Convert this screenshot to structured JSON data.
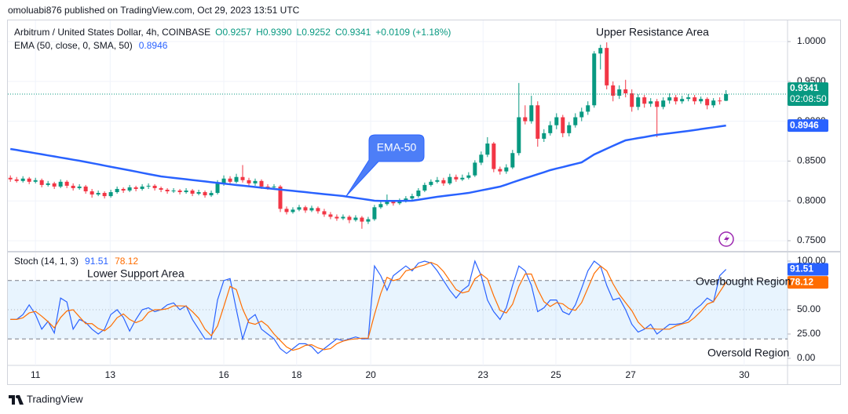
{
  "header": "omoluabi876 published on TradingView.com, Oct 29, 2023 13:51 UTC",
  "footer": "TradingView",
  "chart_data": [
    {
      "type": "candlestick",
      "title": "Arbitrum / United States Dollar, 4h, COINBASE",
      "legend_values": [
        "O0.9257",
        "H0.9390",
        "L0.9252",
        "C0.9341",
        "+0.0109 (+1.18%)"
      ],
      "price_tag": {
        "price": "0.9341",
        "countdown": "02:08:50"
      },
      "annotations": [
        "Upper Resistance Area",
        "EMA-50"
      ],
      "up_color": "#089981",
      "down_color": "#f23645",
      "xlim": [
        -0.4,
        123.8
      ],
      "xticks": [
        {
          "value": 4,
          "label": "11"
        },
        {
          "value": 15.9,
          "label": "13"
        },
        {
          "value": 34,
          "label": "16"
        },
        {
          "value": 45.6,
          "label": "18"
        },
        {
          "value": 57.4,
          "label": "20"
        },
        {
          "value": 75.3,
          "label": "23"
        },
        {
          "value": 86.9,
          "label": "25"
        },
        {
          "value": 98.8,
          "label": "27"
        },
        {
          "value": 116.9,
          "label": "30"
        }
      ],
      "ylim": [
        0.7372,
        1.0266
      ],
      "yticks": [
        {
          "value": 0.75,
          "label": "0.7500"
        },
        {
          "value": 0.8,
          "label": "0.8000"
        },
        {
          "value": 0.85,
          "label": "0.8500"
        },
        {
          "value": 0.9,
          "label": "0.9000"
        },
        {
          "value": 0.95,
          "label": "0.9500"
        },
        {
          "value": 1.0,
          "label": "1.0000"
        }
      ],
      "grid": true,
      "candles": [
        [
          0.829,
          0.832,
          0.824,
          0.827
        ],
        [
          0.827,
          0.83,
          0.823,
          0.825
        ],
        [
          0.825,
          0.831,
          0.823,
          0.828
        ],
        [
          0.828,
          0.83,
          0.821,
          0.824
        ],
        [
          0.824,
          0.829,
          0.822,
          0.826
        ],
        [
          0.826,
          0.828,
          0.817,
          0.82
        ],
        [
          0.82,
          0.825,
          0.818,
          0.822
        ],
        [
          0.822,
          0.824,
          0.815,
          0.818
        ],
        [
          0.818,
          0.827,
          0.816,
          0.824
        ],
        [
          0.824,
          0.826,
          0.816,
          0.819
        ],
        [
          0.819,
          0.822,
          0.813,
          0.816
        ],
        [
          0.816,
          0.821,
          0.814,
          0.818
        ],
        [
          0.818,
          0.82,
          0.809,
          0.812
        ],
        [
          0.812,
          0.815,
          0.804,
          0.808
        ],
        [
          0.808,
          0.813,
          0.806,
          0.81
        ],
        [
          0.81,
          0.812,
          0.803,
          0.806
        ],
        [
          0.806,
          0.814,
          0.804,
          0.811
        ],
        [
          0.811,
          0.818,
          0.809,
          0.815
        ],
        [
          0.815,
          0.817,
          0.81,
          0.813
        ],
        [
          0.813,
          0.82,
          0.811,
          0.817
        ],
        [
          0.817,
          0.819,
          0.812,
          0.815
        ],
        [
          0.815,
          0.821,
          0.813,
          0.818
        ],
        [
          0.818,
          0.822,
          0.815,
          0.819
        ],
        [
          0.819,
          0.821,
          0.813,
          0.816
        ],
        [
          0.816,
          0.818,
          0.811,
          0.814
        ],
        [
          0.814,
          0.816,
          0.809,
          0.812
        ],
        [
          0.812,
          0.816,
          0.81,
          0.813
        ],
        [
          0.813,
          0.815,
          0.808,
          0.811
        ],
        [
          0.811,
          0.816,
          0.809,
          0.813
        ],
        [
          0.813,
          0.815,
          0.806,
          0.809
        ],
        [
          0.809,
          0.814,
          0.807,
          0.811
        ],
        [
          0.811,
          0.813,
          0.804,
          0.807
        ],
        [
          0.807,
          0.813,
          0.805,
          0.81
        ],
        [
          0.81,
          0.826,
          0.808,
          0.822
        ],
        [
          0.822,
          0.832,
          0.819,
          0.828
        ],
        [
          0.828,
          0.831,
          0.82,
          0.824
        ],
        [
          0.824,
          0.834,
          0.822,
          0.83
        ],
        [
          0.83,
          0.845,
          0.823,
          0.826
        ],
        [
          0.826,
          0.829,
          0.818,
          0.822
        ],
        [
          0.822,
          0.828,
          0.819,
          0.825
        ],
        [
          0.825,
          0.827,
          0.815,
          0.818
        ],
        [
          0.818,
          0.821,
          0.814,
          0.817
        ],
        [
          0.817,
          0.821,
          0.814,
          0.818
        ],
        [
          0.818,
          0.82,
          0.786,
          0.79
        ],
        [
          0.79,
          0.793,
          0.783,
          0.786
        ],
        [
          0.786,
          0.792,
          0.784,
          0.789
        ],
        [
          0.789,
          0.795,
          0.787,
          0.792
        ],
        [
          0.792,
          0.794,
          0.785,
          0.788
        ],
        [
          0.788,
          0.794,
          0.786,
          0.791
        ],
        [
          0.791,
          0.793,
          0.784,
          0.787
        ],
        [
          0.787,
          0.79,
          0.78,
          0.783
        ],
        [
          0.783,
          0.786,
          0.777,
          0.78
        ],
        [
          0.78,
          0.783,
          0.775,
          0.778
        ],
        [
          0.778,
          0.783,
          0.776,
          0.78
        ],
        [
          0.78,
          0.782,
          0.772,
          0.776
        ],
        [
          0.776,
          0.782,
          0.774,
          0.779
        ],
        [
          0.779,
          0.781,
          0.765,
          0.774
        ],
        [
          0.774,
          0.78,
          0.771,
          0.777
        ],
        [
          0.777,
          0.795,
          0.775,
          0.792
        ],
        [
          0.792,
          0.799,
          0.79,
          0.796
        ],
        [
          0.796,
          0.808,
          0.794,
          0.799
        ],
        [
          0.799,
          0.801,
          0.794,
          0.797
        ],
        [
          0.797,
          0.803,
          0.795,
          0.8
        ],
        [
          0.8,
          0.806,
          0.798,
          0.803
        ],
        [
          0.803,
          0.809,
          0.801,
          0.806
        ],
        [
          0.806,
          0.816,
          0.804,
          0.813
        ],
        [
          0.813,
          0.823,
          0.811,
          0.82
        ],
        [
          0.82,
          0.827,
          0.818,
          0.824
        ],
        [
          0.824,
          0.83,
          0.822,
          0.826
        ],
        [
          0.826,
          0.829,
          0.819,
          0.822
        ],
        [
          0.822,
          0.834,
          0.82,
          0.83
        ],
        [
          0.83,
          0.833,
          0.824,
          0.827
        ],
        [
          0.827,
          0.833,
          0.825,
          0.829
        ],
        [
          0.829,
          0.836,
          0.827,
          0.832
        ],
        [
          0.832,
          0.851,
          0.83,
          0.848
        ],
        [
          0.848,
          0.862,
          0.845,
          0.858
        ],
        [
          0.858,
          0.88,
          0.855,
          0.872
        ],
        [
          0.872,
          0.874,
          0.836,
          0.84
        ],
        [
          0.84,
          0.843,
          0.833,
          0.837
        ],
        [
          0.837,
          0.846,
          0.834,
          0.842
        ],
        [
          0.842,
          0.864,
          0.84,
          0.86
        ],
        [
          0.86,
          0.948,
          0.857,
          0.905
        ],
        [
          0.905,
          0.92,
          0.896,
          0.9
        ],
        [
          0.9,
          0.932,
          0.897,
          0.92
        ],
        [
          0.92,
          0.925,
          0.868,
          0.878
        ],
        [
          0.878,
          0.89,
          0.874,
          0.885
        ],
        [
          0.885,
          0.9,
          0.882,
          0.895
        ],
        [
          0.895,
          0.91,
          0.89,
          0.905
        ],
        [
          0.905,
          0.908,
          0.88,
          0.885
        ],
        [
          0.885,
          0.899,
          0.881,
          0.895
        ],
        [
          0.895,
          0.91,
          0.892,
          0.905
        ],
        [
          0.905,
          0.917,
          0.9,
          0.912
        ],
        [
          0.912,
          0.925,
          0.908,
          0.92
        ],
        [
          0.92,
          0.988,
          0.917,
          0.985
        ],
        [
          0.985,
          0.996,
          0.965,
          0.992
        ],
        [
          0.992,
          0.999,
          0.94,
          0.945
        ],
        [
          0.945,
          0.95,
          0.925,
          0.932
        ],
        [
          0.932,
          0.945,
          0.928,
          0.94
        ],
        [
          0.94,
          0.952,
          0.93,
          0.935
        ],
        [
          0.935,
          0.94,
          0.912,
          0.918
        ],
        [
          0.918,
          0.934,
          0.914,
          0.93
        ],
        [
          0.93,
          0.933,
          0.917,
          0.922
        ],
        [
          0.922,
          0.929,
          0.918,
          0.925
        ],
        [
          0.925,
          0.928,
          0.88,
          0.918
        ],
        [
          0.918,
          0.93,
          0.915,
          0.926
        ],
        [
          0.926,
          0.935,
          0.922,
          0.93
        ],
        [
          0.93,
          0.933,
          0.921,
          0.925
        ],
        [
          0.925,
          0.932,
          0.922,
          0.928
        ],
        [
          0.928,
          0.934,
          0.925,
          0.93
        ],
        [
          0.93,
          0.933,
          0.921,
          0.925
        ],
        [
          0.925,
          0.931,
          0.922,
          0.928
        ],
        [
          0.928,
          0.93,
          0.915,
          0.92
        ],
        [
          0.92,
          0.929,
          0.917,
          0.926
        ],
        [
          0.926,
          0.93,
          0.921,
          0.9257
        ],
        [
          0.9257,
          0.939,
          0.9252,
          0.9341
        ]
      ],
      "series": [
        {
          "name": "EMA (50, close, 0, SMA, 50)",
          "last_label": "0.8946",
          "color": "#2962ff",
          "values": [
            0.8652,
            0.8639,
            0.8625,
            0.8612,
            0.8598,
            0.8585,
            0.8571,
            0.8558,
            0.8544,
            0.8531,
            0.8517,
            0.8504,
            0.8489,
            0.8474,
            0.8459,
            0.8443,
            0.8428,
            0.8413,
            0.8398,
            0.8383,
            0.8368,
            0.8352,
            0.8337,
            0.8322,
            0.8307,
            0.8298,
            0.8289,
            0.828,
            0.8271,
            0.8262,
            0.8253,
            0.8244,
            0.8235,
            0.8226,
            0.8217,
            0.8208,
            0.8199,
            0.8191,
            0.8183,
            0.8174,
            0.8166,
            0.8158,
            0.815,
            0.8142,
            0.8134,
            0.8126,
            0.8118,
            0.811,
            0.8101,
            0.8093,
            0.8085,
            0.8077,
            0.8069,
            0.8061,
            0.8049,
            0.8037,
            0.8026,
            0.8014,
            0.8002,
            0.8,
            0.7999,
            0.7999,
            0.8,
            0.8001,
            0.8002,
            0.8014,
            0.8027,
            0.8039,
            0.8051,
            0.8061,
            0.8071,
            0.808,
            0.809,
            0.81,
            0.8116,
            0.8132,
            0.8147,
            0.8163,
            0.8179,
            0.8205,
            0.8232,
            0.8258,
            0.8284,
            0.8309,
            0.8335,
            0.836,
            0.8386,
            0.8406,
            0.8425,
            0.8445,
            0.8464,
            0.8484,
            0.8533,
            0.8583,
            0.8619,
            0.8655,
            0.8691,
            0.8726,
            0.876,
            0.8774,
            0.8788,
            0.8801,
            0.8815,
            0.8829,
            0.8839,
            0.8849,
            0.8858,
            0.8868,
            0.8878,
            0.8889,
            0.8901,
            0.8912,
            0.8923,
            0.8935,
            0.8946
          ]
        }
      ]
    },
    {
      "type": "line",
      "title": "Stoch (14, 1, 3)",
      "annotations": [
        "Lower Support Area",
        "Overbought Region",
        "Oversold Region"
      ],
      "ylim": [
        -7.26,
        108.87
      ],
      "yticks": [
        {
          "value": 0,
          "label": "0.00"
        },
        {
          "value": 25,
          "label": "25.00"
        },
        {
          "value": 50,
          "label": "50.00"
        },
        {
          "value": 100,
          "label": "100.00"
        }
      ],
      "bands": [
        20,
        80
      ],
      "midline": 50,
      "band_color": "#2196f3",
      "series": [
        {
          "last_label": "91.51",
          "color": "#2962ff",
          "values": [
            40,
            40,
            45,
            55,
            45,
            30,
            38,
            26,
            62,
            58,
            30,
            40,
            37,
            30,
            25,
            30,
            45,
            50,
            42,
            28,
            40,
            50,
            52,
            48,
            50,
            55,
            57,
            50,
            54,
            40,
            30,
            20,
            20,
            60,
            80,
            82,
            50,
            20,
            40,
            45,
            30,
            25,
            20,
            10,
            5,
            10,
            15,
            15,
            12,
            5,
            10,
            15,
            20,
            18,
            20,
            22,
            20,
            20,
            95,
            85,
            70,
            85,
            90,
            95,
            90,
            98,
            100,
            98,
            90,
            80,
            70,
            62,
            70,
            75,
            100,
            85,
            60,
            48,
            40,
            52,
            75,
            95,
            90,
            75,
            48,
            52,
            60,
            60,
            48,
            45,
            55,
            72,
            90,
            100,
            95,
            75,
            60,
            62,
            50,
            35,
            27,
            30,
            35,
            25,
            30,
            35,
            35,
            36,
            40,
            50,
            55,
            62,
            58,
            85,
            91.51
          ]
        },
        {
          "last_label": "78.12",
          "color": "#ff6d00",
          "values": [
            40,
            40,
            41.7,
            46.7,
            48.3,
            43.3,
            37.7,
            31.3,
            42,
            48.7,
            50,
            42.7,
            35.7,
            35.7,
            30.7,
            28.3,
            33.3,
            41.7,
            45.7,
            40,
            36.7,
            39.3,
            47.3,
            50,
            50,
            51,
            54,
            54,
            53.7,
            48,
            41.3,
            30,
            23.3,
            33.3,
            53.3,
            74,
            70.7,
            50.7,
            36.7,
            35,
            38.3,
            33.3,
            25,
            18.3,
            11.7,
            8.3,
            10,
            13.3,
            14,
            10.7,
            9,
            10,
            15,
            17.7,
            19.3,
            20,
            20.7,
            20.7,
            45,
            66.7,
            83.3,
            80,
            81.7,
            90,
            91.7,
            94.3,
            96,
            98.7,
            96,
            89.3,
            80,
            70.7,
            67.3,
            69,
            81.7,
            86.7,
            81.7,
            64.3,
            49.3,
            46.7,
            55.7,
            74,
            86.7,
            86.7,
            71,
            58.3,
            53.3,
            57.3,
            56,
            51,
            49.3,
            57.3,
            72.3,
            87.3,
            95,
            90,
            76.7,
            65.7,
            57.3,
            49,
            37.3,
            30.7,
            30.7,
            30,
            30,
            30,
            33.3,
            35.3,
            37,
            42,
            48.3,
            55.7,
            58.3,
            68.3,
            78.12
          ]
        }
      ]
    }
  ]
}
